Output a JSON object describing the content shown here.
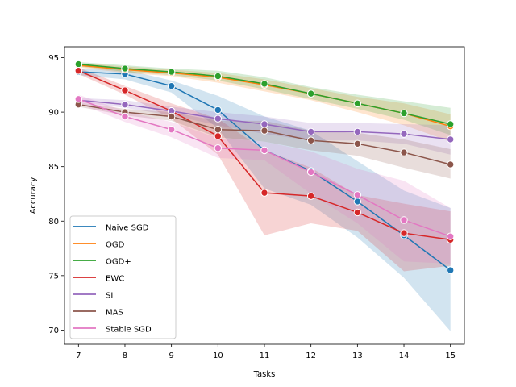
{
  "chart_data": {
    "type": "line",
    "title": "",
    "xlabel": "Tasks",
    "ylabel": "Accuracy",
    "xlim": [
      6.7,
      15.3
    ],
    "ylim": [
      68.7,
      96.0
    ],
    "xticks": [
      7,
      8,
      9,
      10,
      11,
      12,
      13,
      14,
      15
    ],
    "yticks": [
      70,
      75,
      80,
      85,
      90,
      95
    ],
    "x": [
      7,
      8,
      9,
      10,
      11,
      12,
      13,
      14,
      15
    ],
    "legend_position": "bottom-left",
    "grid": false,
    "series": [
      {
        "name": "Naive SGD",
        "color": "#1f77b4",
        "values": [
          93.7,
          93.5,
          92.4,
          90.2,
          86.5,
          84.6,
          81.8,
          78.7,
          75.5
        ],
        "lower": [
          93.4,
          93.0,
          91.8,
          88.5,
          83.0,
          81.5,
          78.5,
          74.8,
          69.9
        ],
        "upper": [
          94.0,
          93.9,
          92.9,
          91.5,
          89.6,
          88.3,
          85.5,
          82.8,
          81.2
        ]
      },
      {
        "name": "OGD",
        "color": "#ff7f0e",
        "values": [
          94.3,
          93.9,
          93.6,
          93.2,
          92.5,
          91.7,
          90.8,
          89.9,
          88.7
        ],
        "lower": [
          94.1,
          93.6,
          93.3,
          92.7,
          91.9,
          91.1,
          90.0,
          88.8,
          87.3
        ],
        "upper": [
          94.5,
          94.2,
          93.9,
          93.6,
          93.0,
          92.2,
          91.4,
          90.8,
          89.8
        ]
      },
      {
        "name": "OGD+",
        "color": "#2ca02c",
        "values": [
          94.4,
          94.0,
          93.7,
          93.3,
          92.6,
          91.7,
          90.8,
          89.9,
          88.9
        ],
        "lower": [
          94.2,
          93.7,
          93.4,
          92.9,
          92.1,
          91.2,
          90.3,
          89.3,
          87.9
        ],
        "upper": [
          94.6,
          94.3,
          94.0,
          93.8,
          93.2,
          92.3,
          91.6,
          91.0,
          90.4
        ]
      },
      {
        "name": "EWC",
        "color": "#d62728",
        "values": [
          93.8,
          92.0,
          90.1,
          87.8,
          82.6,
          82.3,
          80.8,
          78.9,
          78.3
        ],
        "lower": [
          93.5,
          91.6,
          89.4,
          86.1,
          78.7,
          79.8,
          79.1,
          75.4,
          75.9
        ],
        "upper": [
          94.1,
          92.4,
          90.8,
          89.4,
          86.5,
          84.9,
          82.4,
          81.6,
          80.9
        ]
      },
      {
        "name": "SI",
        "color": "#9467bd",
        "values": [
          91.1,
          90.7,
          90.1,
          89.4,
          88.9,
          88.2,
          88.2,
          88.0,
          87.5
        ],
        "lower": [
          90.9,
          90.4,
          89.7,
          88.8,
          88.0,
          87.4,
          87.4,
          87.1,
          86.1
        ],
        "upper": [
          91.3,
          91.1,
          90.5,
          90.0,
          89.6,
          89.0,
          89.0,
          88.9,
          88.8
        ]
      },
      {
        "name": "MAS",
        "color": "#8c564b",
        "values": [
          90.7,
          90.0,
          89.6,
          88.4,
          88.3,
          87.4,
          87.1,
          86.3,
          85.2
        ],
        "lower": [
          90.5,
          89.7,
          89.2,
          87.7,
          87.3,
          86.5,
          86.0,
          84.9,
          83.9
        ],
        "upper": [
          90.9,
          90.3,
          90.0,
          89.2,
          89.2,
          88.3,
          88.1,
          87.5,
          86.6
        ]
      },
      {
        "name": "Stable SGD",
        "color": "#e377c2",
        "values": [
          91.2,
          89.6,
          88.4,
          86.7,
          86.5,
          84.5,
          82.4,
          80.1,
          78.6
        ],
        "lower": [
          90.8,
          89.1,
          87.7,
          85.8,
          85.6,
          82.5,
          79.8,
          76.3,
          76.1
        ],
        "upper": [
          91.6,
          90.1,
          89.1,
          87.6,
          87.3,
          86.4,
          84.8,
          83.7,
          81.2
        ]
      }
    ]
  }
}
